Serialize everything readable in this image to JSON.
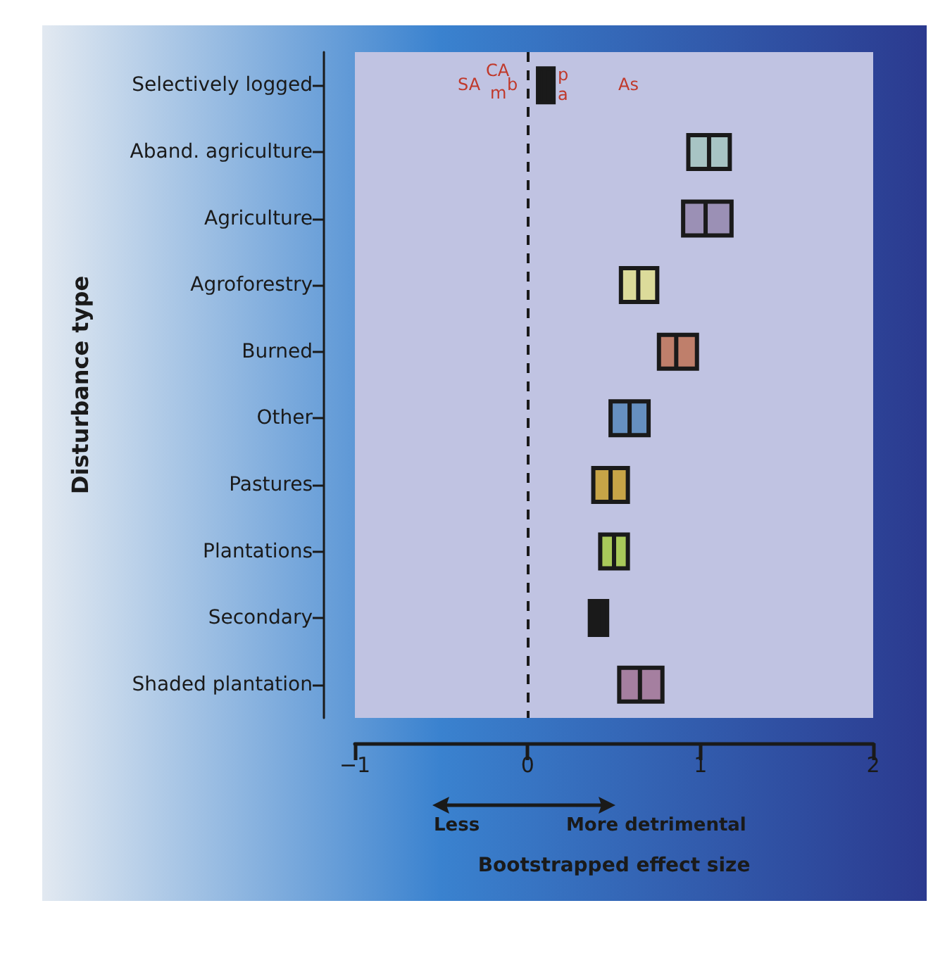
{
  "chart_data": {
    "type": "box",
    "orientation": "horizontal",
    "xlabel": "Bootstrapped effect size",
    "ylabel": "Disturbance type",
    "categories": [
      "Selectively logged",
      "Aband. agriculture",
      "Agriculture",
      "Agroforestry",
      "Burned",
      "Other",
      "Pastures",
      "Plantations",
      "Secondary",
      "Shaded plantation"
    ],
    "boxes": [
      {
        "low": 0.06,
        "q1": 0.06,
        "median": 0.1,
        "q3": 0.15,
        "high": 0.15
      },
      {
        "low": 0.93,
        "q1": 0.93,
        "median": 1.05,
        "q3": 1.17,
        "high": 1.17
      },
      {
        "low": 0.9,
        "q1": 0.9,
        "median": 1.03,
        "q3": 1.18,
        "high": 1.18
      },
      {
        "low": 0.54,
        "q1": 0.54,
        "median": 0.64,
        "q3": 0.75,
        "high": 0.75
      },
      {
        "low": 0.76,
        "q1": 0.76,
        "median": 0.86,
        "q3": 0.98,
        "high": 0.98
      },
      {
        "low": 0.48,
        "q1": 0.48,
        "median": 0.59,
        "q3": 0.7,
        "high": 0.7
      },
      {
        "low": 0.38,
        "q1": 0.38,
        "median": 0.48,
        "q3": 0.58,
        "high": 0.58
      },
      {
        "low": 0.42,
        "q1": 0.42,
        "median": 0.5,
        "q3": 0.58,
        "high": 0.58
      },
      {
        "low": 0.36,
        "q1": 0.36,
        "median": 0.41,
        "q3": 0.46,
        "high": 0.46
      },
      {
        "low": 0.53,
        "q1": 0.53,
        "median": 0.65,
        "q3": 0.78,
        "high": 0.78
      }
    ],
    "colors": [
      "#1a1a1a",
      "#a8c4c4",
      "#9b90b5",
      "#dcdb9a",
      "#bf7f6b",
      "#6690c0",
      "#c7a447",
      "#a9c95a",
      "#1a1a1a",
      "#a57fa0"
    ],
    "xlim": [
      -1,
      2
    ],
    "xticks": [
      -1,
      0,
      1,
      2
    ],
    "ref_lines": [
      {
        "axis": "x",
        "value": 0,
        "line_style": "dashed",
        "color": "#1a1a1a"
      }
    ],
    "annotations": [
      "SA",
      "CA",
      "m",
      "b",
      "p",
      "a",
      "As",
      "Less",
      "More detrimental"
    ]
  }
}
